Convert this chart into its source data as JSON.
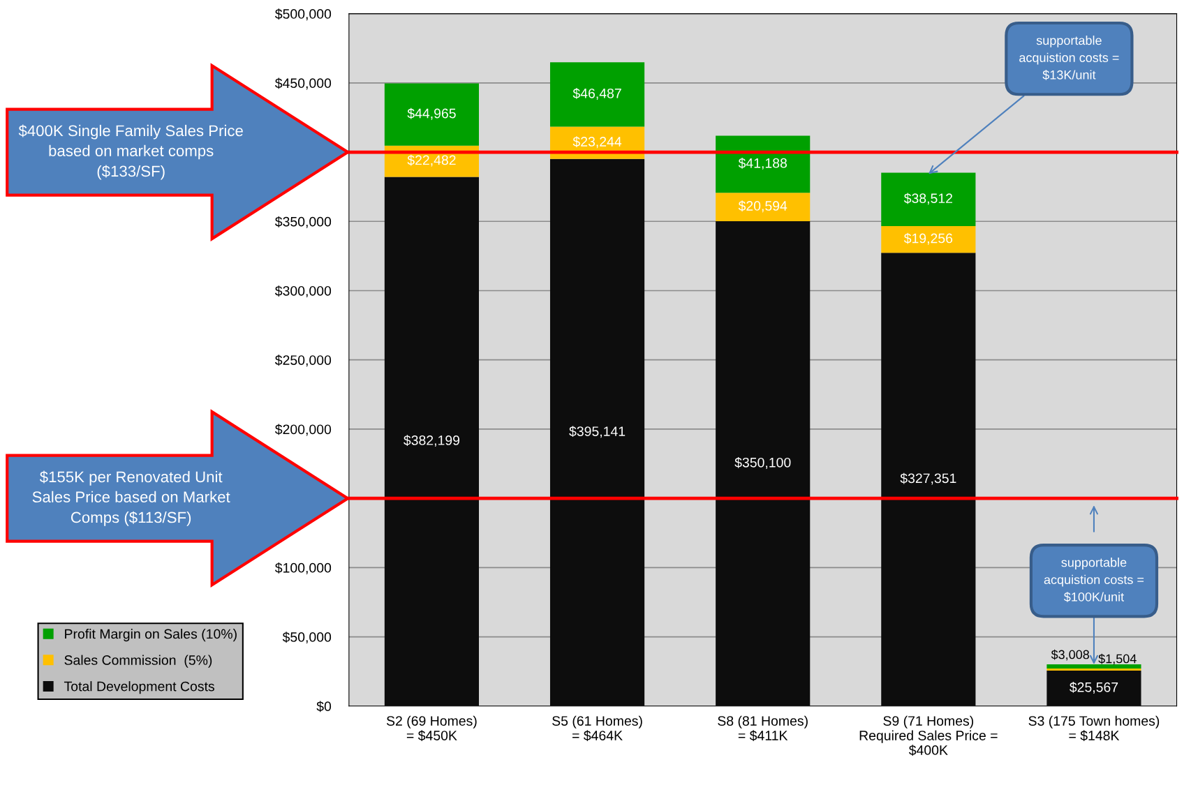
{
  "chart_data": {
    "type": "bar",
    "stacked": true,
    "categories": [
      "S2 (69 Homes)\n= $450K",
      "S5 (61 Homes)\n= $464K",
      "S8 (81 Homes)\n= $411K",
      "S9 (71 Homes)\nRequired Sales Price =\n$400K",
      "S3 (175 Town homes)\n= $148K"
    ],
    "series": [
      {
        "name": "Total Development Costs",
        "color": "#0d0d0d",
        "values": [
          382199,
          395141,
          350100,
          327351,
          25567
        ],
        "value_labels": [
          "$382,199",
          "$395,141",
          "$350,100",
          "$327,351",
          "$25,567"
        ]
      },
      {
        "name": "Sales Commission  (5%)",
        "color": "#ffc000",
        "values": [
          22482,
          23244,
          20594,
          19256,
          1504
        ],
        "value_labels": [
          "$22,482",
          "$23,244",
          "$20,594",
          "$19,256",
          "$1,504"
        ]
      },
      {
        "name": "Profit Margin on Sales (10%)",
        "color": "#00a000",
        "values": [
          44965,
          46487,
          41188,
          38512,
          3008
        ],
        "value_labels": [
          "$44,965",
          "$46,487",
          "$41,188",
          "$38,512",
          "$3,008"
        ]
      }
    ],
    "ylim": [
      0,
      500000
    ],
    "yticks": [
      {
        "value": 0,
        "label": "$0"
      },
      {
        "value": 50000,
        "label": "$50,000"
      },
      {
        "value": 100000,
        "label": "$100,000"
      },
      {
        "value": 200000,
        "label": "$200,000"
      },
      {
        "value": 250000,
        "label": "$250,000"
      },
      {
        "value": 300000,
        "label": "$300,000"
      },
      {
        "value": 350000,
        "label": "$350,000"
      },
      {
        "value": 450000,
        "label": "$450,000"
      },
      {
        "value": 500000,
        "label": "$500,000"
      }
    ],
    "grid": "y",
    "legend": "bottom left",
    "ref_lines": [
      {
        "axis": "y",
        "value": 400000,
        "label": "$400K Single Family Sales Price\nbased on market comps\n($133/SF)",
        "color": "#ff0000"
      },
      {
        "axis": "y",
        "value": 150000,
        "label": "$155K per Renovated Unit\nSales Price based on Market\nComps ($113/SF)",
        "color": "#ff0000"
      }
    ],
    "annotations": [
      {
        "text": "supportable\nacquistion costs =\n$13K/unit",
        "x": "S9 (71 Homes)\nRequired Sales Price =\n$400K",
        "y": 384119
      },
      {
        "text": "supportable\nacquistion costs =\n$100K/unit",
        "x": "S3 (175 Town homes)\n= $148K",
        "y": 30079
      }
    ]
  }
}
